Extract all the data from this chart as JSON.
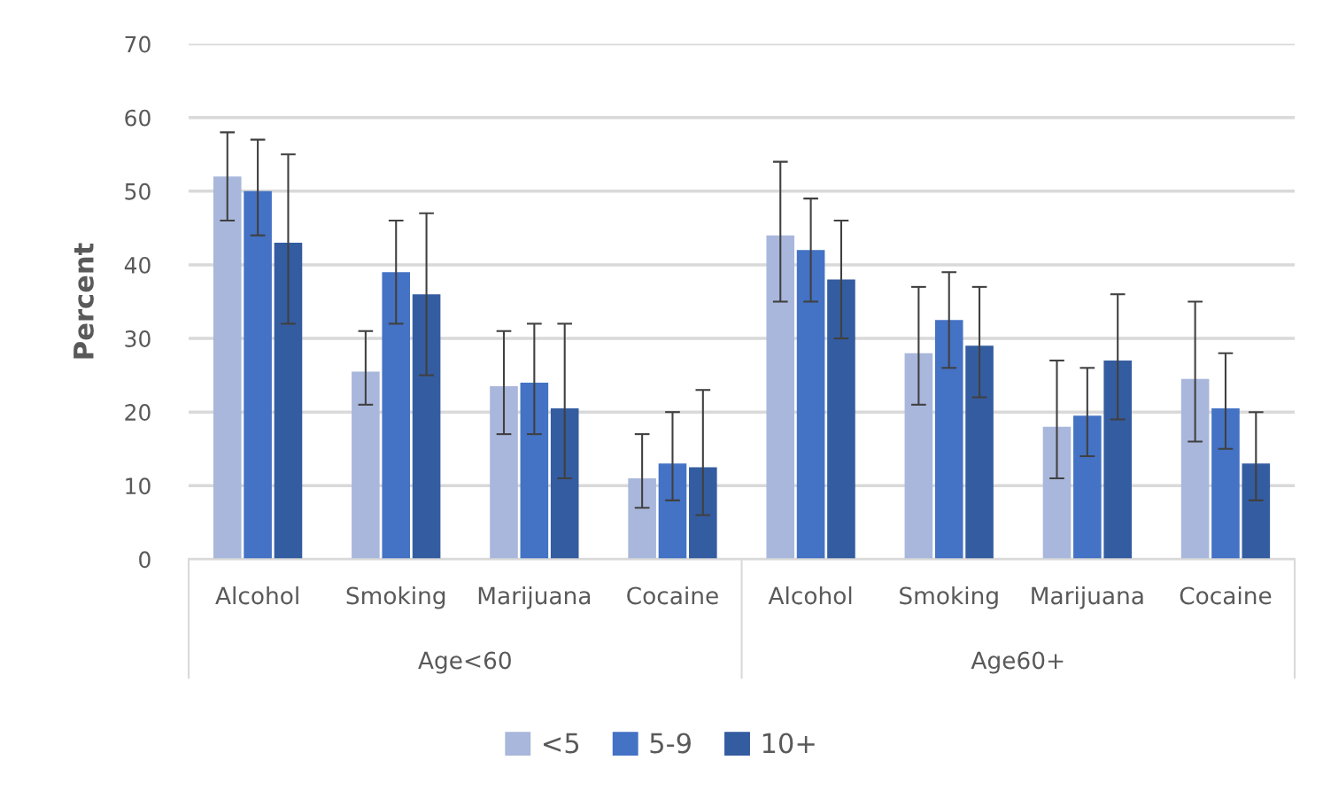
{
  "chart_data": {
    "type": "bar",
    "ylabel": "Percent",
    "categories": [
      "Alcohol",
      "Smoking",
      "Marijuana",
      "Cocaine",
      "Alcohol",
      "Smoking",
      "Marijuana",
      "Cocaine"
    ],
    "annotations": [
      "Age<60",
      "Age60+"
    ],
    "series": [
      {
        "name": "<5",
        "color": "#a9b7dc",
        "values": [
          52,
          25.5,
          23.5,
          11,
          44,
          28,
          18,
          24.5
        ],
        "errors": [
          [
            46,
            58
          ],
          [
            21,
            31
          ],
          [
            17,
            31
          ],
          [
            7,
            17
          ],
          [
            35,
            54
          ],
          [
            21,
            37
          ],
          [
            11,
            27
          ],
          [
            16,
            35
          ]
        ]
      },
      {
        "name": "5-9",
        "color": "#4472c4",
        "values": [
          50,
          39,
          24,
          13,
          42,
          32.5,
          19.5,
          20.5
        ],
        "errors": [
          [
            44,
            57
          ],
          [
            32,
            46
          ],
          [
            17,
            32
          ],
          [
            8,
            20
          ],
          [
            35,
            49
          ],
          [
            26,
            39
          ],
          [
            14,
            26
          ],
          [
            15,
            28
          ]
        ]
      },
      {
        "name": "10+",
        "color": "#345ca0",
        "values": [
          43,
          36,
          20.5,
          12.5,
          38,
          29,
          27,
          13
        ],
        "errors": [
          [
            32,
            55
          ],
          [
            25,
            47
          ],
          [
            11,
            32
          ],
          [
            6,
            23
          ],
          [
            30,
            46
          ],
          [
            22,
            37
          ],
          [
            19,
            36
          ],
          [
            8,
            20
          ]
        ]
      }
    ],
    "ylim": [
      0,
      70
    ],
    "yticks": [
      0,
      10,
      20,
      30,
      40,
      50,
      60,
      70
    ],
    "grid": "y",
    "legend": "bottom"
  }
}
